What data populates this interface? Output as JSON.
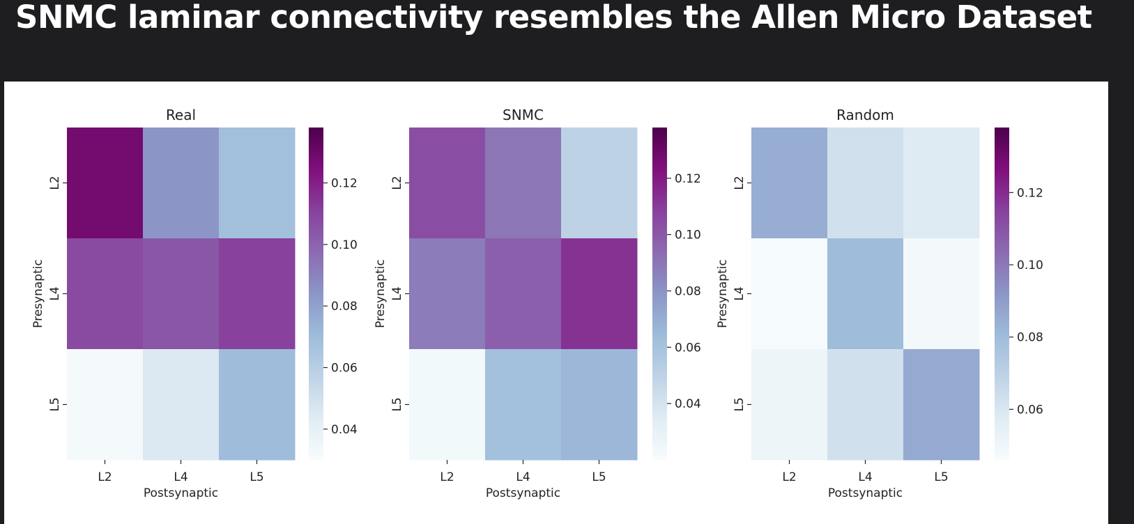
{
  "slide": {
    "title": "SNMC laminar connectivity resembles the Allen Micro Dataset"
  },
  "colors": {
    "background": "#1e1e20",
    "panel": "#ffffff",
    "colormap": "BuPu"
  },
  "chart_data": [
    {
      "type": "heatmap",
      "title": "Real",
      "xlabel": "Postsynaptic",
      "ylabel": "Presynaptic",
      "x_categories": [
        "L2",
        "L4",
        "L5"
      ],
      "y_categories": [
        "L2",
        "L4",
        "L5"
      ],
      "values": [
        [
          0.128,
          0.084,
          0.069
        ],
        [
          0.108,
          0.104,
          0.111
        ],
        [
          0.032,
          0.045,
          0.07
        ]
      ],
      "vmin": 0.03,
      "vmax": 0.138,
      "colorbar_ticks": [
        "0.04",
        "0.06",
        "0.08",
        "0.10",
        "0.12"
      ],
      "colorbar_tick_values": [
        0.04,
        0.06,
        0.08,
        0.1,
        0.12
      ]
    },
    {
      "type": "heatmap",
      "title": "SNMC",
      "xlabel": "Postsynaptic",
      "ylabel": "Presynaptic",
      "x_categories": [
        "L2",
        "L4",
        "L5"
      ],
      "y_categories": [
        "L2",
        "L4",
        "L5"
      ],
      "values": [
        [
          0.104,
          0.09,
          0.05
        ],
        [
          0.088,
          0.098,
          0.113
        ],
        [
          0.023,
          0.062,
          0.066
        ]
      ],
      "vmin": 0.02,
      "vmax": 0.138,
      "colorbar_ticks": [
        "0.04",
        "0.06",
        "0.08",
        "0.10",
        "0.12"
      ],
      "colorbar_tick_values": [
        0.04,
        0.06,
        0.08,
        0.1,
        0.12
      ]
    },
    {
      "type": "heatmap",
      "title": "Random",
      "xlabel": "Postsynaptic",
      "ylabel": "Presynaptic",
      "x_categories": [
        "L2",
        "L4",
        "L5"
      ],
      "y_categories": [
        "L2",
        "L4",
        "L5"
      ],
      "values": [
        [
          0.085,
          0.063,
          0.058
        ],
        [
          0.047,
          0.08,
          0.048
        ],
        [
          0.051,
          0.063,
          0.086
        ]
      ],
      "vmin": 0.046,
      "vmax": 0.138,
      "colorbar_ticks": [
        "0.06",
        "0.08",
        "0.10",
        "0.12"
      ],
      "colorbar_tick_values": [
        0.06,
        0.08,
        0.1,
        0.12
      ]
    }
  ]
}
